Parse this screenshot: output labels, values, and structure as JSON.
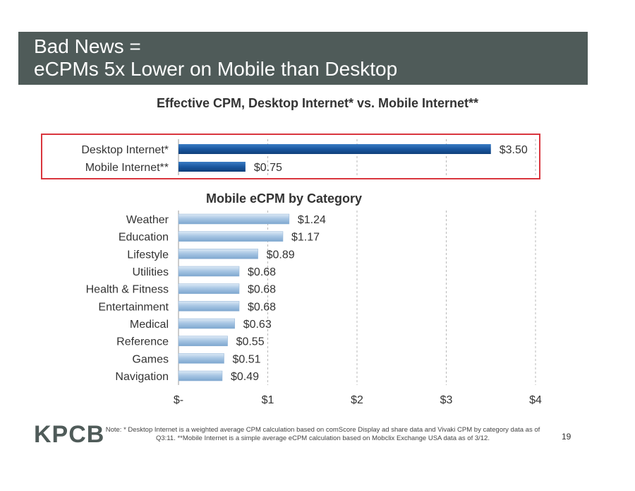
{
  "slide": {
    "title_line1": "Bad News =",
    "title_line2": "eCPMs 5x Lower on Mobile than Desktop",
    "logo_text": "KPCB",
    "note": "Note: * Desktop Internet is a weighted average CPM calculation based on comScore Display ad share data and Vivaki CPM by category data as of Q3:11. **Mobile Internet is a simple average eCPM calculation based on Mobclix Exchange USA data as of 3/12.",
    "page_number": "19"
  },
  "colors": {
    "title_bar": "#4f5b59",
    "desktop_bar": "#1a57a0",
    "category_bar": "#a9c7e4",
    "highlight_box": "#d9363e"
  },
  "chart_data": [
    {
      "type": "bar",
      "orientation": "horizontal",
      "title": "Effective CPM, Desktop Internet* vs. Mobile Internet**",
      "categories": [
        "Desktop Internet*",
        "Mobile Internet**"
      ],
      "values": [
        3.5,
        0.75
      ],
      "data_labels": [
        "$3.50",
        "$0.75"
      ],
      "xlim": [
        0,
        4
      ],
      "grid": true,
      "highlighted": true
    },
    {
      "type": "bar",
      "orientation": "horizontal",
      "title": "Mobile eCPM by Category",
      "categories": [
        "Weather",
        "Education",
        "Lifestyle",
        "Utilities",
        "Health & Fitness",
        "Entertainment",
        "Medical",
        "Reference",
        "Games",
        "Navigation"
      ],
      "values": [
        1.24,
        1.17,
        0.89,
        0.68,
        0.68,
        0.68,
        0.63,
        0.55,
        0.51,
        0.49
      ],
      "data_labels": [
        "$1.24",
        "$1.17",
        "$0.89",
        "$0.68",
        "$0.68",
        "$0.68",
        "$0.63",
        "$0.55",
        "$0.51",
        "$0.49"
      ],
      "xlim": [
        0,
        4
      ],
      "x_ticks": [
        0,
        1,
        2,
        3,
        4
      ],
      "x_tick_labels": [
        "$-",
        "$1",
        "$2",
        "$3",
        "$4"
      ],
      "grid": true
    }
  ]
}
